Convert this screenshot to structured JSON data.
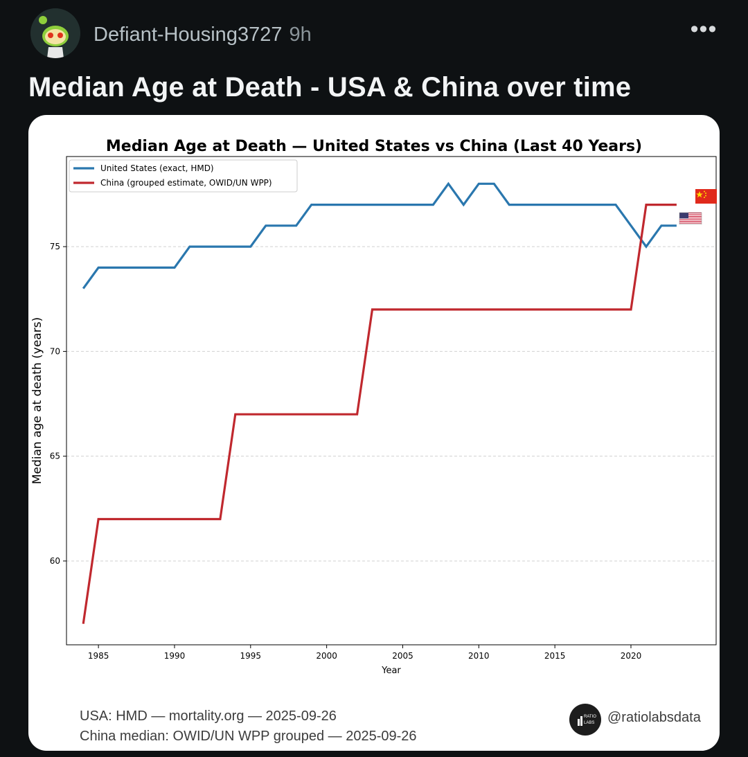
{
  "post": {
    "author": "Defiant-Housing3727",
    "age": "9h",
    "more_label": "•••",
    "title": "Median Age at Death - USA & China over time"
  },
  "icons": {
    "avatar": "snoo-avatar-icon",
    "more": "more-options-icon",
    "flag_china": "china-flag-icon",
    "flag_us": "us-flag-icon",
    "brand_logo": "ratio-labs-logo-icon"
  },
  "colors": {
    "usa": "#2a77ae",
    "china": "#c0282e",
    "background": "#0e1113"
  },
  "chart_data": {
    "type": "line",
    "title": "Median Age at Death — United States vs China (Last 40 Years)",
    "xlabel": "Year",
    "ylabel": "Median age at death (years)",
    "xlim": [
      1982.9,
      2025.6
    ],
    "ylim": [
      56.0,
      79.3
    ],
    "xticks": [
      1985,
      1990,
      1995,
      2000,
      2005,
      2010,
      2015,
      2020
    ],
    "yticks": [
      60,
      65,
      70,
      75
    ],
    "grid": "horizontal dashed",
    "legend_position": "top-left",
    "series": [
      {
        "name": "United States (exact, HMD)",
        "color": "#2a77ae",
        "x": [
          1984,
          1985,
          1986,
          1987,
          1988,
          1989,
          1990,
          1991,
          1992,
          1993,
          1994,
          1995,
          1996,
          1997,
          1998,
          1999,
          2000,
          2001,
          2002,
          2003,
          2004,
          2005,
          2006,
          2007,
          2008,
          2009,
          2010,
          2011,
          2012,
          2013,
          2014,
          2015,
          2016,
          2017,
          2018,
          2019,
          2020,
          2021,
          2022,
          2023
        ],
        "y": [
          73,
          74,
          74,
          74,
          74,
          74,
          74,
          75,
          75,
          75,
          75,
          75,
          76,
          76,
          76,
          77,
          77,
          77,
          77,
          77,
          77,
          77,
          77,
          77,
          78,
          77,
          78,
          78,
          77,
          77,
          77,
          77,
          77,
          77,
          77,
          77,
          76,
          75,
          76,
          76
        ]
      },
      {
        "name": "China (grouped estimate, OWID/UN WPP)",
        "color": "#c0282e",
        "x": [
          1984,
          1985,
          1993,
          1994,
          2002,
          2003,
          2020,
          2021,
          2023
        ],
        "y": [
          57,
          62,
          62,
          67,
          67,
          72,
          72,
          77,
          77
        ]
      }
    ]
  },
  "footer": {
    "source_usa": "USA: HMD — mortality.org — 2025-09-26",
    "source_china": "China median: OWID/UN WPP grouped — 2025-09-26",
    "handle": "@ratiolabsdata",
    "logo_text_1": "RATIO",
    "logo_text_2": "LABS"
  }
}
